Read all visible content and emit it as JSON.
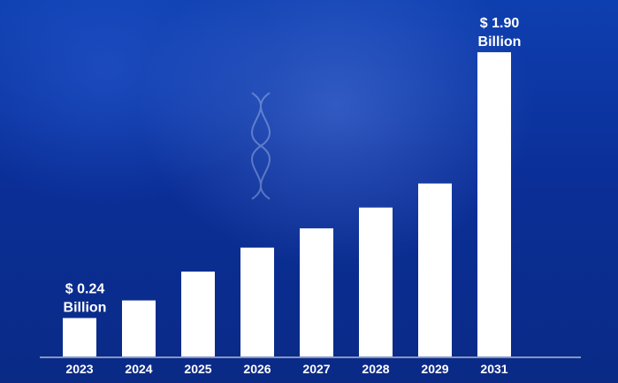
{
  "chart_data": {
    "type": "bar",
    "categories": [
      "2023",
      "2024",
      "2025",
      "2026",
      "2027",
      "2028",
      "2029",
      "2031"
    ],
    "values": [
      0.24,
      0.35,
      0.53,
      0.68,
      0.8,
      0.93,
      1.08,
      1.9
    ],
    "unit": "Billion",
    "currency": "$",
    "ylim": [
      0,
      1.95
    ],
    "grid": false,
    "bar_color": "#ffffff",
    "annotations": [
      {
        "category": "2023",
        "line1": "$ 0.24",
        "line2": "Billion"
      },
      {
        "category": "2031",
        "line1": "$ 1.90",
        "line2": "Billion"
      }
    ]
  },
  "background": {
    "theme": "blue biotech imagery (gloved hand holding DNA helix)",
    "colors": [
      "#0e3fb0",
      "#0a2a86"
    ]
  }
}
